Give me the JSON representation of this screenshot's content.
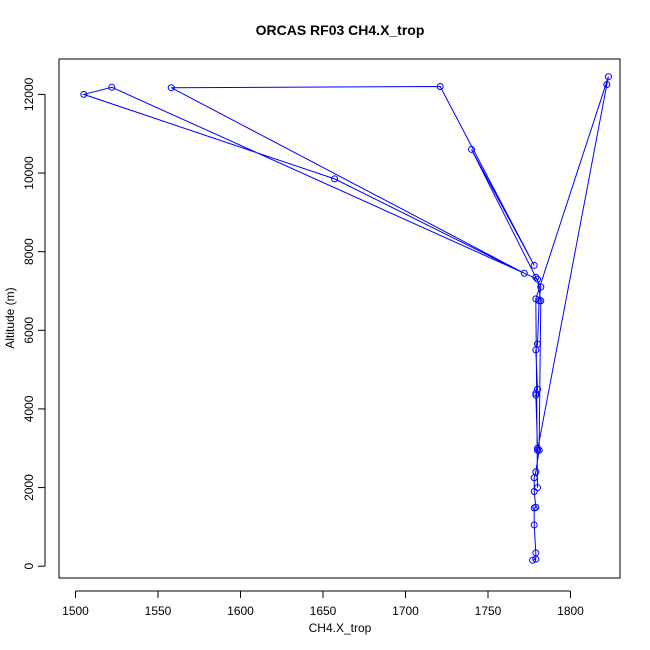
{
  "chart_data": {
    "type": "line",
    "title": "ORCAS RF03 CH4.X_trop",
    "xlabel": "CH4.X_trop",
    "ylabel": "Altitude (m)",
    "xlim": [
      1490,
      1830
    ],
    "ylim": [
      -300,
      12900
    ],
    "x_ticks": [
      1500,
      1550,
      1600,
      1650,
      1700,
      1750,
      1800
    ],
    "y_ticks": [
      0,
      2000,
      4000,
      6000,
      8000,
      10000,
      12000
    ],
    "grid": false,
    "markers": "open-circle",
    "color": "#0000ff",
    "series": [
      {
        "points": [
          [
            1777,
            150
          ],
          [
            1779,
            180
          ],
          [
            1779,
            340
          ],
          [
            1778,
            1050
          ],
          [
            1778,
            1480
          ],
          [
            1779,
            1500
          ],
          [
            1778,
            1900
          ],
          [
            1778,
            2250
          ],
          [
            1779,
            2400
          ],
          [
            1781,
            2950
          ],
          [
            1782,
            6750
          ],
          [
            1780,
            7300
          ],
          [
            1522,
            12180
          ],
          [
            1505,
            12000
          ],
          [
            1657,
            9850
          ],
          [
            1772,
            7450
          ],
          [
            1558,
            12170
          ],
          [
            1721,
            12200
          ],
          [
            1778,
            7650
          ],
          [
            1740,
            10600
          ],
          [
            1779,
            7350
          ],
          [
            1782,
            7100
          ],
          [
            1781,
            6750
          ],
          [
            1780,
            5650
          ],
          [
            1779,
            5500
          ],
          [
            1780,
            4500
          ],
          [
            1779,
            4350
          ],
          [
            1779,
            4400
          ],
          [
            1780,
            3000
          ],
          [
            1780,
            2950
          ],
          [
            1822,
            12250
          ],
          [
            1823,
            12450
          ],
          [
            1779,
            6800
          ],
          [
            1780,
            2000
          ]
        ]
      }
    ]
  }
}
